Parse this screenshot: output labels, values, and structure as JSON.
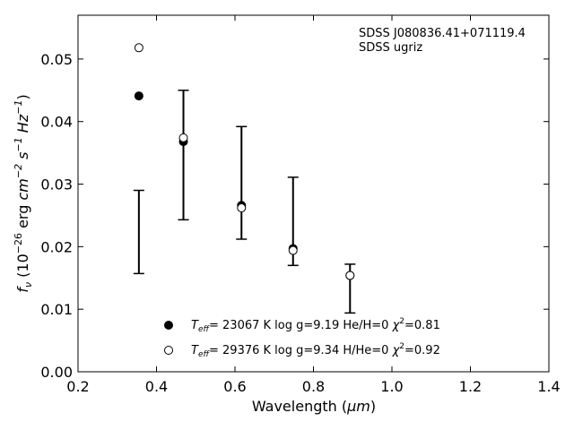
{
  "chart_data": {
    "type": "scatter",
    "xlabel_main": "Wavelength (",
    "xlabel_unit": "μm",
    "xlabel_end": ")",
    "ylabel_parts": {
      "f": "f",
      "nu": "ν",
      "open": " (10",
      "exp": "−26",
      "erg": " erg ",
      "cm": "cm",
      "cm_exp": "−2",
      "s": " s",
      "s_exp": "−1",
      "hz": " Hz",
      "hz_exp": "−1",
      "close": ")"
    },
    "annotation_lines": [
      "SDSS J080836.41+071119.4",
      "SDSS ugriz"
    ],
    "xlim": [
      0.2,
      1.4
    ],
    "ylim": [
      0.0,
      0.057
    ],
    "xticks": [
      0.2,
      0.4,
      0.6,
      0.8,
      1.0,
      1.2,
      1.4
    ],
    "xtick_labels": [
      "0.2",
      "0.4",
      "0.6",
      "0.8",
      "1.0",
      "1.2",
      "1.4"
    ],
    "yticks": [
      0.0,
      0.01,
      0.02,
      0.03,
      0.04,
      0.05
    ],
    "ytick_labels": [
      "0.00",
      "0.01",
      "0.02",
      "0.03",
      "0.04",
      "0.05"
    ],
    "observed": {
      "x": [
        0.3551,
        0.4686,
        0.6166,
        0.748,
        0.8932
      ],
      "ylow": [
        0.0157,
        0.0243,
        0.0212,
        0.017,
        0.0094
      ],
      "yhigh": [
        0.029,
        0.045,
        0.0392,
        0.0311,
        0.0172
      ]
    },
    "series": [
      {
        "marker": "filled",
        "x": [
          0.3551,
          0.4686,
          0.6166,
          0.748,
          0.8932
        ],
        "y": [
          0.0441,
          0.0368,
          0.0266,
          0.0197,
          0.0154
        ],
        "label": {
          "t": "T",
          "sub": "eff",
          "text": "= 23067 K  log g=9.19  He/H=0  ",
          "chi": "χ",
          "chi_exp": "2",
          "chi_val": "=0.81"
        }
      },
      {
        "marker": "open",
        "x": [
          0.3551,
          0.4686,
          0.6166,
          0.748,
          0.8932
        ],
        "y": [
          0.0518,
          0.0374,
          0.0262,
          0.0194,
          0.0154
        ],
        "label": {
          "t": "T",
          "sub": "eff",
          "text": "= 29376 K  log g=9.34  H/He=0  ",
          "chi": "χ",
          "chi_exp": "2",
          "chi_val": "=0.92"
        }
      }
    ],
    "legend_position": "lower-center"
  }
}
